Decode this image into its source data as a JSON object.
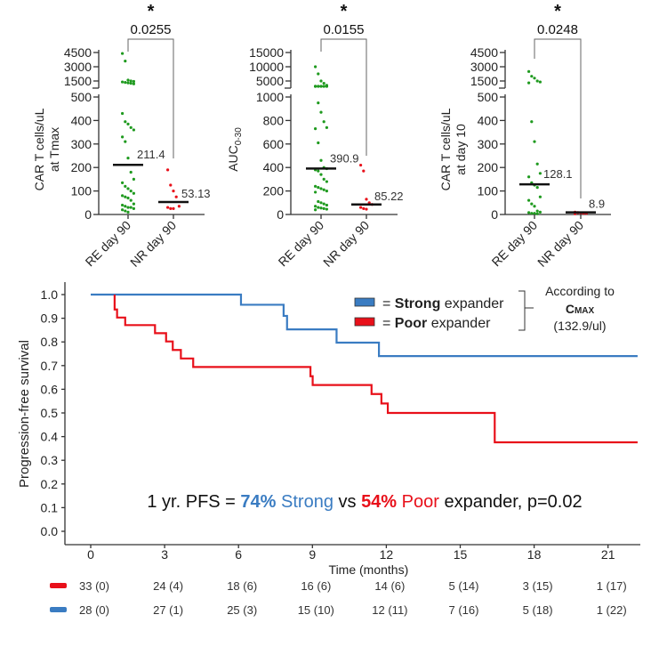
{
  "colors": {
    "responder": "#1f9a1f",
    "nonresponder": "#e8101a",
    "strong": "#3a7cc2",
    "poor": "#e8101a"
  },
  "chart_data": [
    {
      "type": "scatter",
      "ylabel": [
        "CAR T cells/uL",
        "at Tmax"
      ],
      "categories": [
        "RE day 90",
        "NR day 90"
      ],
      "lower_ticks": [
        "0",
        "100",
        "200",
        "300",
        "400",
        "500"
      ],
      "upper_ticks": [
        "1500",
        "3000",
        "4500"
      ],
      "lower_max": 500,
      "upper_values": [
        1500,
        3000,
        4500
      ],
      "significance": "*",
      "p_value": "0.0255",
      "medians": [
        211.4,
        53.13
      ],
      "median_labels": [
        "211.4",
        "53.13"
      ],
      "series": [
        {
          "name": "RE day 90",
          "values": [
            4400,
            3600,
            1600,
            1500,
            1450,
            1400,
            1350,
            1300,
            1250,
            1200,
            430,
            395,
            385,
            370,
            360,
            330,
            310,
            240,
            180,
            150,
            135,
            120,
            110,
            100,
            90,
            80,
            75,
            70,
            60,
            45,
            40,
            35,
            30,
            30,
            25,
            20,
            15,
            10
          ]
        },
        {
          "name": "NR day 90",
          "values": [
            190,
            125,
            100,
            75,
            35,
            30,
            25,
            25
          ]
        }
      ]
    },
    {
      "type": "scatter",
      "ylabel": [
        "AUC",
        "0-30"
      ],
      "categories": [
        "RE day 90",
        "NR day 90"
      ],
      "lower_ticks": [
        "0",
        "200",
        "400",
        "600",
        "800",
        "1000"
      ],
      "upper_ticks": [
        "5000",
        "10000",
        "15000"
      ],
      "lower_max": 1000,
      "upper_values": [
        5000,
        10000,
        15000
      ],
      "significance": "*",
      "p_value": "0.0155",
      "medians": [
        390.9,
        85.22
      ],
      "median_labels": [
        "390.9",
        "85.22"
      ],
      "series": [
        {
          "name": "RE day 90",
          "values": [
            10000,
            7500,
            5000,
            4200,
            3500,
            3000,
            2500,
            2300,
            2200,
            2100,
            2000,
            1900,
            1800,
            1700,
            1600,
            1500,
            950,
            870,
            790,
            740,
            730,
            610,
            460,
            400,
            390,
            380,
            370,
            340,
            300,
            280,
            240,
            230,
            220,
            210,
            200,
            190,
            110,
            100,
            90,
            80,
            70,
            60,
            55,
            50,
            45,
            40
          ]
        },
        {
          "name": "NR day 90",
          "values": [
            420,
            370,
            130,
            100,
            85,
            60,
            50,
            45
          ]
        }
      ]
    },
    {
      "type": "scatter",
      "ylabel": [
        "CAR T cells/uL",
        "at day 10"
      ],
      "categories": [
        "RE day 90",
        "NR day 90"
      ],
      "lower_ticks": [
        "0",
        "100",
        "200",
        "300",
        "400",
        "500"
      ],
      "upper_ticks": [
        "1500",
        "3000",
        "4500"
      ],
      "lower_max": 500,
      "upper_values": [
        1500,
        3000,
        4500
      ],
      "significance": "*",
      "p_value": "0.0248",
      "medians": [
        128.1,
        8.9
      ],
      "median_labels": [
        "128.1",
        "8.9"
      ],
      "series": [
        {
          "name": "RE day 90",
          "values": [
            2500,
            2000,
            1800,
            1500,
            1400,
            1300,
            395,
            310,
            215,
            175,
            160,
            135,
            125,
            115,
            75,
            60,
            45,
            35,
            15,
            10,
            8,
            5,
            5,
            3
          ]
        },
        {
          "name": "NR day 90",
          "values": [
            10,
            8,
            7,
            5,
            5,
            3
          ]
        }
      ]
    },
    {
      "type": "line",
      "subtype": "kaplan-meier",
      "ylabel": "Progression-free survival",
      "xlabel": "Time (months)",
      "xlim": [
        0,
        22.2
      ],
      "ylim": [
        0,
        1
      ],
      "x_ticks": [
        "0",
        "3",
        "6",
        "9",
        "12",
        "15",
        "18",
        "21"
      ],
      "y_ticks": [
        "0.0",
        "0.1",
        "0.2",
        "0.3",
        "0.4",
        "0.5",
        "0.6",
        "0.7",
        "0.8",
        "0.9",
        "1.0"
      ],
      "legend": {
        "strong": {
          "eq": "= ",
          "bold": "Strong",
          "rest": " expander"
        },
        "poor": {
          "eq": "= ",
          "bold": "Poor",
          "rest": " expander"
        },
        "note_line1": "According to",
        "note_cmax": "C",
        "note_cmax_sub": "MAX",
        "note_line3": "(132.9/ul)"
      },
      "annotation": {
        "p1": "1 yr. PFS = ",
        "strong_pct": "74%",
        "strong_word": " Strong",
        "vs": " vs ",
        "poor_pct": "54%",
        "poor_word": " Poor",
        "rest": " expander, p=0.02"
      },
      "series": [
        {
          "name": "Strong expander",
          "steps": [
            [
              0,
              1.0
            ],
            [
              6.1,
              0.957
            ],
            [
              7.83,
              0.91
            ],
            [
              7.97,
              0.853
            ],
            [
              9.98,
              0.797
            ],
            [
              11.7,
              0.74
            ],
            [
              22.2,
              0.74
            ]
          ]
        },
        {
          "name": "Poor expander",
          "steps": [
            [
              0.97,
              1.0
            ],
            [
              0.97,
              0.937
            ],
            [
              1.07,
              0.903
            ],
            [
              1.4,
              0.871
            ],
            [
              2.61,
              0.837
            ],
            [
              3.06,
              0.802
            ],
            [
              3.33,
              0.766
            ],
            [
              3.66,
              0.73
            ],
            [
              4.16,
              0.694
            ],
            [
              8.92,
              0.655
            ],
            [
              9.01,
              0.618
            ],
            [
              11.4,
              0.58
            ],
            [
              11.8,
              0.54
            ],
            [
              12.06,
              0.5
            ],
            [
              16.4,
              0.376
            ],
            [
              22.2,
              0.376
            ]
          ]
        }
      ],
      "risk_table": {
        "poor": [
          "33 (0)",
          "24 (4)",
          "18 (6)",
          "16 (6)",
          "14 (6)",
          "5 (14)",
          "3 (15)",
          "1 (17)"
        ],
        "strong": [
          "28 (0)",
          "27 (1)",
          "25 (3)",
          "15 (10)",
          "12 (11)",
          "7 (16)",
          "5 (18)",
          "1 (22)"
        ]
      }
    }
  ]
}
